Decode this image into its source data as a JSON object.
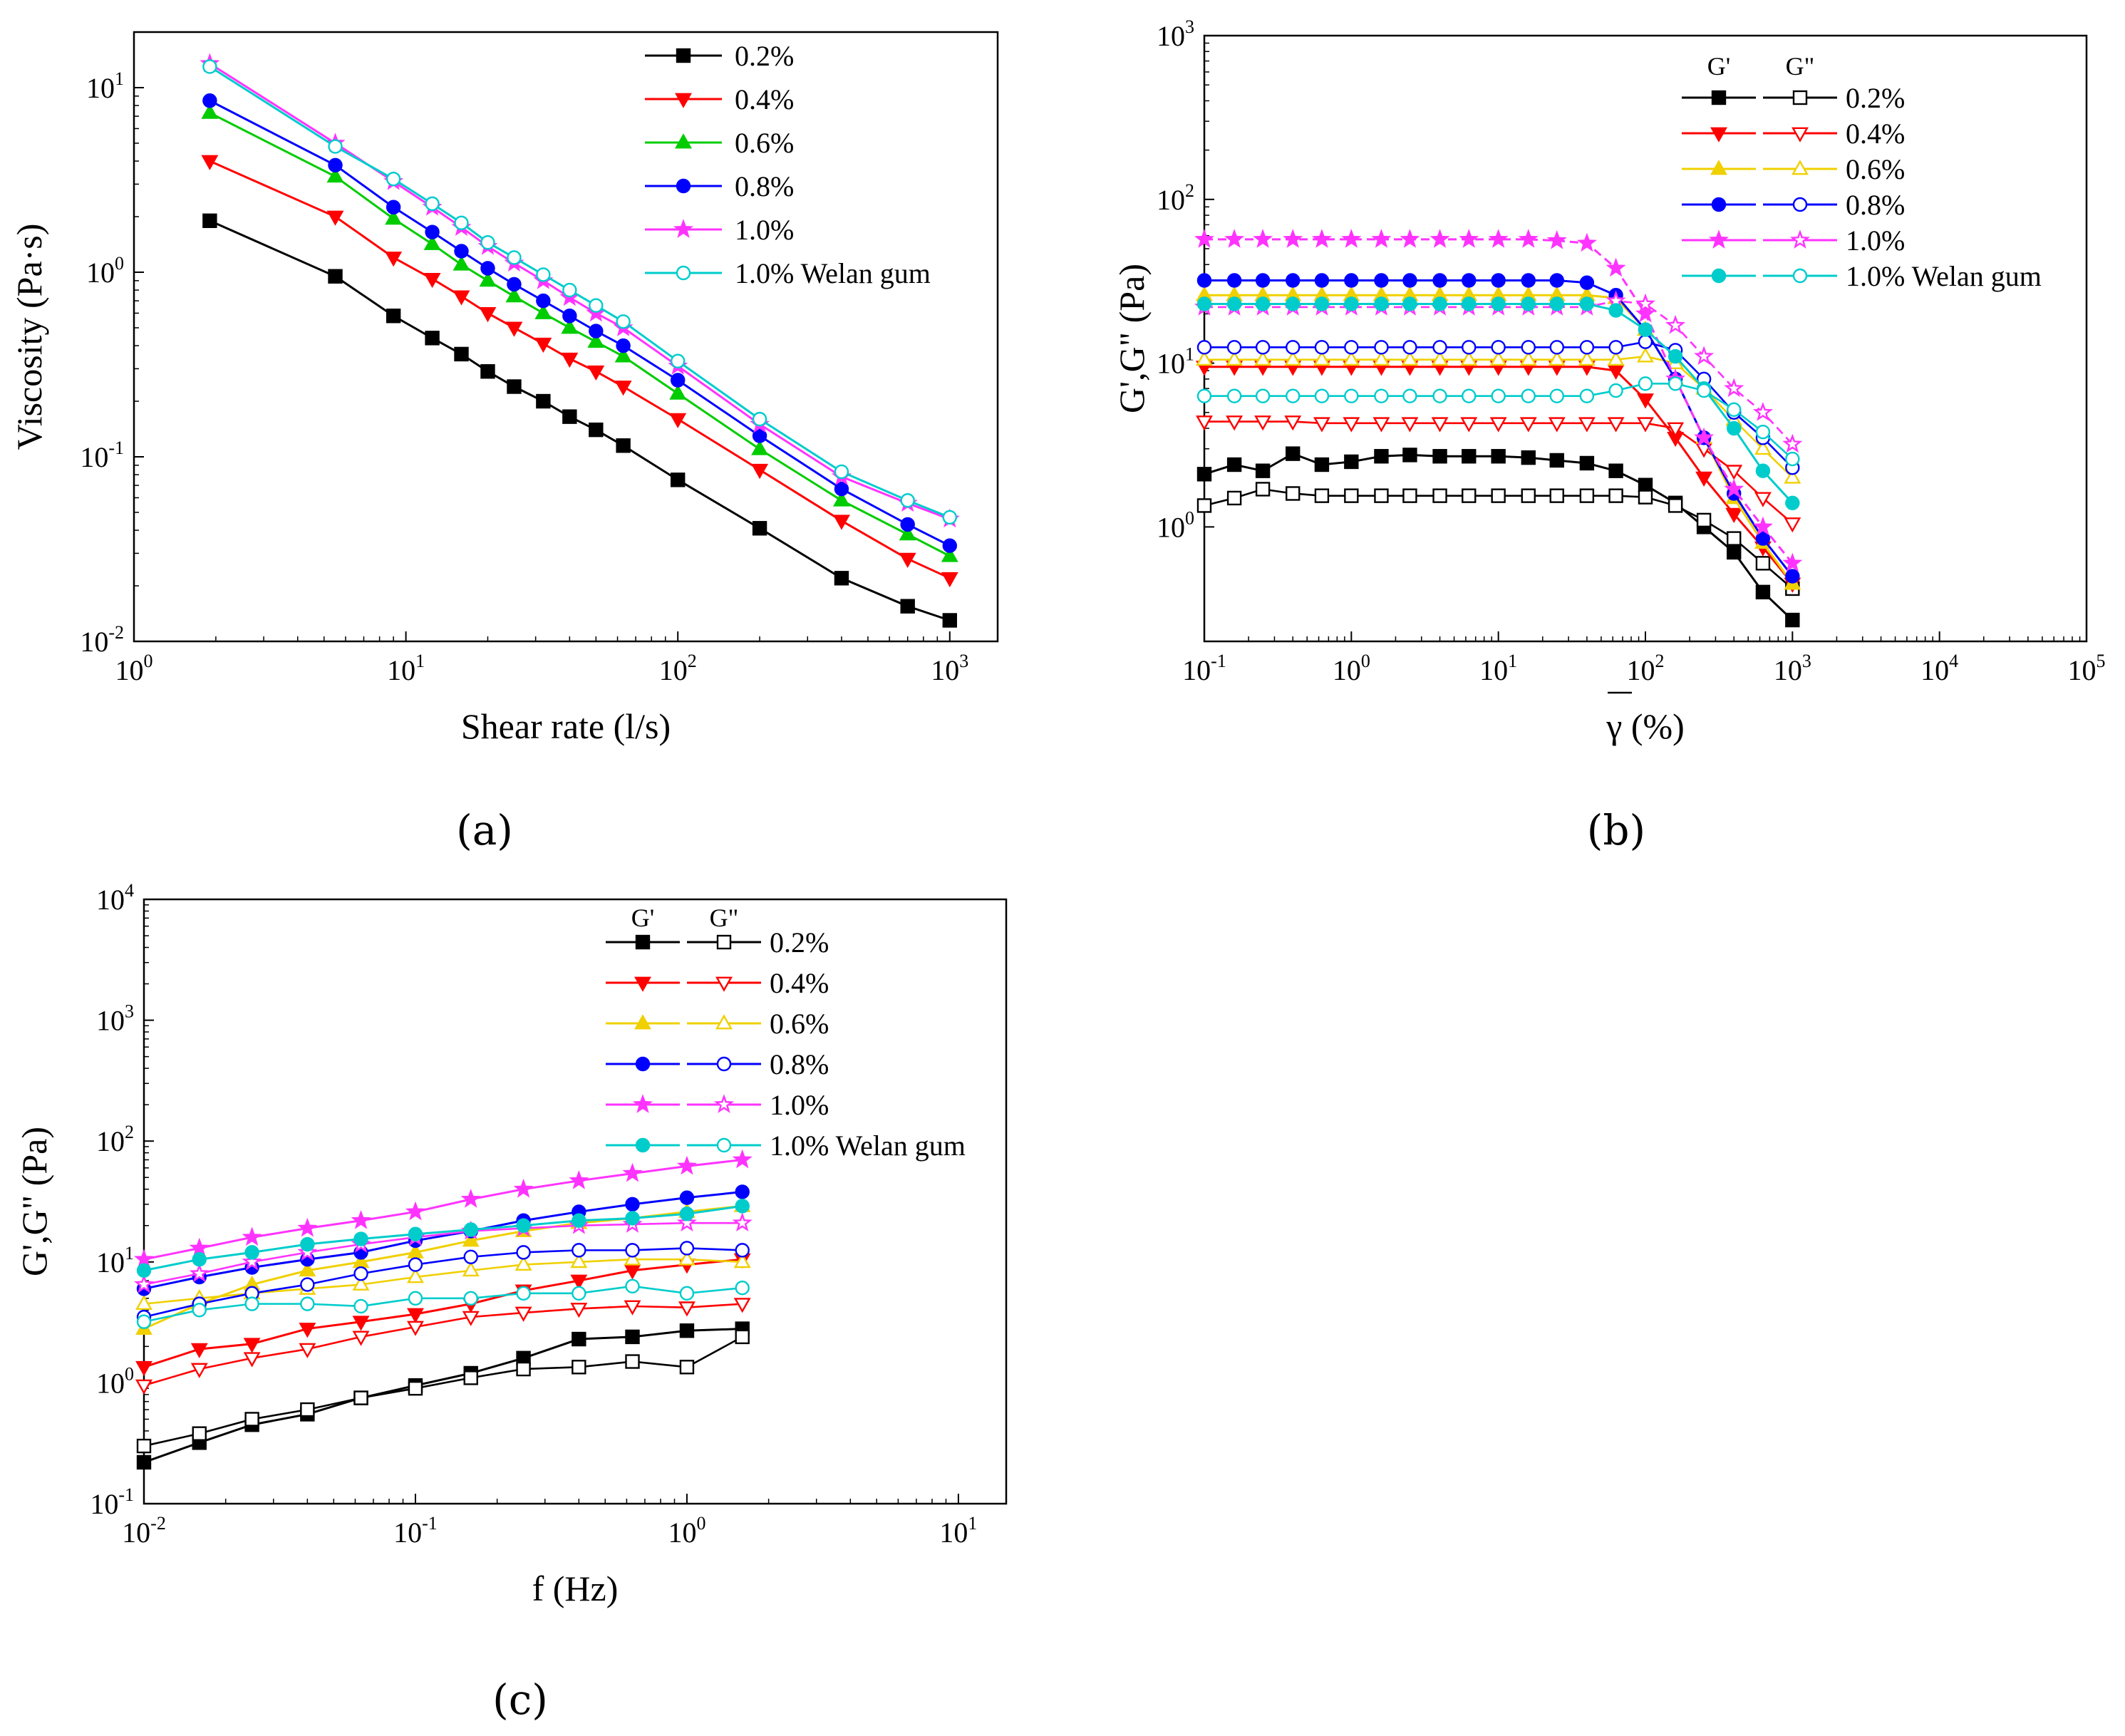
{
  "figure": {
    "panels": [
      {
        "label": "(a)"
      },
      {
        "label": "(b)"
      },
      {
        "label": "(c)"
      }
    ]
  },
  "chart_data": [
    {
      "type": "line",
      "xscale": "log",
      "yscale": "log",
      "xlabel": "Shear rate (l/s)",
      "ylabel": "Viscosity (Pa·s)",
      "xlim": [
        1,
        1500
      ],
      "ylim": [
        0.01,
        20
      ],
      "xticks": [
        {
          "base": "10",
          "exp": "0"
        },
        {
          "base": "10",
          "exp": "1"
        },
        {
          "base": "10",
          "exp": "2"
        },
        {
          "base": "10",
          "exp": "3"
        }
      ],
      "yticks": [
        {
          "base": "10",
          "exp": "-2"
        },
        {
          "base": "10",
          "exp": "-1"
        },
        {
          "base": "10",
          "exp": "0"
        },
        {
          "base": "10",
          "exp": "1"
        }
      ],
      "legend_position": "top-right",
      "series": [
        {
          "name": "0.2%",
          "color": "#000000",
          "marker": "square",
          "x": [
            1.9,
            5.5,
            9,
            12.5,
            16,
            20,
            25,
            32,
            40,
            50,
            63,
            100,
            200,
            400,
            700,
            1000
          ],
          "y": [
            1.9,
            0.95,
            0.58,
            0.44,
            0.36,
            0.29,
            0.24,
            0.2,
            0.165,
            0.14,
            0.115,
            0.075,
            0.041,
            0.022,
            0.0155,
            0.013
          ]
        },
        {
          "name": "0.4%",
          "color": "#ff0000",
          "marker": "triangle-down",
          "x": [
            1.9,
            5.5,
            9,
            12.5,
            16,
            20,
            25,
            32,
            40,
            50,
            63,
            100,
            200,
            400,
            700,
            1000
          ],
          "y": [
            4.0,
            2.0,
            1.2,
            0.92,
            0.74,
            0.6,
            0.5,
            0.41,
            0.34,
            0.29,
            0.24,
            0.16,
            0.085,
            0.045,
            0.028,
            0.022
          ]
        },
        {
          "name": "0.6%",
          "color": "#00cc00",
          "marker": "triangle-up",
          "x": [
            1.9,
            5.5,
            9,
            12.5,
            16,
            20,
            25,
            32,
            40,
            50,
            63,
            100,
            200,
            400,
            700,
            1000
          ],
          "y": [
            7.3,
            3.3,
            1.95,
            1.42,
            1.1,
            0.9,
            0.74,
            0.6,
            0.5,
            0.42,
            0.35,
            0.22,
            0.11,
            0.058,
            0.038,
            0.029
          ]
        },
        {
          "name": "0.8%",
          "color": "#0000ff",
          "marker": "circle",
          "x": [
            1.9,
            5.5,
            9,
            12.5,
            16,
            20,
            25,
            32,
            40,
            50,
            63,
            100,
            200,
            400,
            700,
            1000
          ],
          "y": [
            8.5,
            3.8,
            2.25,
            1.65,
            1.3,
            1.05,
            0.86,
            0.7,
            0.58,
            0.48,
            0.4,
            0.26,
            0.13,
            0.067,
            0.043,
            0.033
          ]
        },
        {
          "name": "1.0%",
          "color": "#ff33ff",
          "marker": "star",
          "x": [
            1.9,
            5.5,
            9,
            12.5,
            16,
            20,
            25,
            32,
            40,
            50,
            63,
            100,
            200,
            400,
            700,
            1000
          ],
          "y": [
            13.5,
            5.0,
            3.1,
            2.25,
            1.75,
            1.38,
            1.12,
            0.9,
            0.73,
            0.6,
            0.5,
            0.31,
            0.15,
            0.078,
            0.056,
            0.046
          ]
        },
        {
          "name": "1.0% Welan gum",
          "color": "#00cccc",
          "marker": "circle-open",
          "x": [
            1.9,
            5.5,
            9,
            12.5,
            16,
            20,
            25,
            32,
            40,
            50,
            63,
            100,
            200,
            400,
            700,
            1000
          ],
          "y": [
            13.0,
            4.8,
            3.2,
            2.35,
            1.85,
            1.45,
            1.2,
            0.97,
            0.8,
            0.66,
            0.54,
            0.33,
            0.16,
            0.083,
            0.058,
            0.047
          ]
        }
      ]
    },
    {
      "type": "line",
      "xscale": "log",
      "yscale": "log",
      "xlabel": "γ (%)",
      "ylabel": "G',G\" (Pa)",
      "xlim": [
        0.1,
        100000
      ],
      "ylim": [
        0.2,
        1000
      ],
      "xticks": [
        {
          "base": "10",
          "exp": "-1"
        },
        {
          "base": "10",
          "exp": "0"
        },
        {
          "base": "10",
          "exp": "1"
        },
        {
          "base": "10",
          "exp": "2"
        },
        {
          "base": "10",
          "exp": "3"
        },
        {
          "base": "10",
          "exp": "4"
        },
        {
          "base": "10",
          "exp": "5"
        }
      ],
      "yticks": [
        {
          "base": "10",
          "exp": "0"
        },
        {
          "base": "10",
          "exp": "1"
        },
        {
          "base": "10",
          "exp": "2"
        },
        {
          "base": "10",
          "exp": "3"
        }
      ],
      "legend_position": "top-right",
      "legend_header_g1": "G'",
      "legend_header_g2": "G\"",
      "x": [
        0.1,
        0.16,
        0.25,
        0.4,
        0.63,
        1,
        1.6,
        2.5,
        4,
        6.3,
        10,
        16,
        25,
        40,
        63,
        100,
        160,
        250,
        400,
        630,
        1000
      ],
      "series": [
        {
          "name": "0.2%",
          "color": "#000000",
          "g1": [
            2.1,
            2.4,
            2.2,
            2.8,
            2.4,
            2.5,
            2.7,
            2.75,
            2.7,
            2.7,
            2.7,
            2.65,
            2.55,
            2.45,
            2.2,
            1.8,
            1.4,
            1.0,
            0.7,
            0.4,
            0.27
          ],
          "g2": [
            1.35,
            1.5,
            1.7,
            1.6,
            1.55,
            1.55,
            1.55,
            1.55,
            1.55,
            1.55,
            1.55,
            1.55,
            1.55,
            1.55,
            1.55,
            1.52,
            1.35,
            1.1,
            0.85,
            0.6,
            0.42
          ]
        },
        {
          "name": "0.4%",
          "color": "#ff0000",
          "g1": [
            9.5,
            9.5,
            9.5,
            9.5,
            9.5,
            9.5,
            9.5,
            9.5,
            9.5,
            9.5,
            9.5,
            9.5,
            9.5,
            9.5,
            9.0,
            6.0,
            3.5,
            2.0,
            1.2,
            0.75,
            0.45
          ],
          "g2": [
            4.4,
            4.4,
            4.4,
            4.4,
            4.3,
            4.3,
            4.3,
            4.3,
            4.3,
            4.3,
            4.3,
            4.3,
            4.3,
            4.3,
            4.3,
            4.3,
            4.0,
            3.0,
            2.2,
            1.5,
            1.05
          ]
        },
        {
          "name": "0.6%",
          "color": "#f0d000",
          "g1": [
            26,
            26,
            26,
            26,
            26,
            26,
            26,
            26,
            26,
            26,
            26,
            26,
            26,
            26,
            25,
            16,
            8,
            3.5,
            1.5,
            0.8,
            0.45
          ],
          "g2": [
            10.5,
            10.5,
            10.5,
            10.5,
            10.5,
            10.5,
            10.5,
            10.5,
            10.5,
            10.5,
            10.5,
            10.5,
            10.5,
            10.5,
            10.5,
            11,
            10,
            7,
            4.5,
            3.0,
            2.0
          ]
        },
        {
          "name": "0.8%",
          "color": "#0000ff",
          "g1": [
            32,
            32,
            32,
            32,
            32,
            32,
            32,
            32,
            32,
            32,
            32,
            32,
            32,
            31,
            26,
            16,
            8,
            3.5,
            1.6,
            0.85,
            0.5
          ],
          "g2": [
            12.5,
            12.5,
            12.5,
            12.5,
            12.5,
            12.5,
            12.5,
            12.5,
            12.5,
            12.5,
            12.5,
            12.5,
            12.5,
            12.5,
            12.5,
            13.5,
            12,
            8,
            5,
            3.5,
            2.3
          ]
        },
        {
          "name": "1.0%",
          "color": "#ff33ff",
          "g1": [
            57,
            57,
            57,
            57,
            57,
            57,
            57,
            57,
            57,
            57,
            57,
            57,
            56,
            54,
            38,
            20,
            8,
            3.5,
            1.7,
            1.0,
            0.6
          ],
          "g2": [
            22,
            22,
            22,
            22,
            22,
            22,
            22,
            22,
            22,
            22,
            22,
            22,
            22,
            22,
            24,
            23,
            17,
            11,
            7,
            5,
            3.2
          ]
        },
        {
          "name": "1.0% Welan gum",
          "color": "#00cccc",
          "g1": [
            23,
            23,
            23,
            23,
            23,
            23,
            23,
            23,
            23,
            23,
            23,
            23,
            23,
            23,
            21,
            16,
            11,
            7,
            4,
            2.2,
            1.4
          ],
          "g2": [
            6.3,
            6.3,
            6.3,
            6.3,
            6.3,
            6.3,
            6.3,
            6.3,
            6.3,
            6.3,
            6.3,
            6.3,
            6.3,
            6.3,
            6.8,
            7.5,
            7.5,
            6.8,
            5.2,
            3.8,
            2.6
          ]
        }
      ]
    },
    {
      "type": "line",
      "xscale": "log",
      "yscale": "log",
      "xlabel": "f (Hz)",
      "ylabel": "G',G\" (Pa)",
      "xlim": [
        0.01,
        15
      ],
      "ylim": [
        0.1,
        10000
      ],
      "xticks": [
        {
          "base": "10",
          "exp": "-2"
        },
        {
          "base": "10",
          "exp": "-1"
        },
        {
          "base": "10",
          "exp": "0"
        },
        {
          "base": "10",
          "exp": "1"
        }
      ],
      "yticks": [
        {
          "base": "10",
          "exp": "-1"
        },
        {
          "base": "10",
          "exp": "0"
        },
        {
          "base": "10",
          "exp": "1"
        },
        {
          "base": "10",
          "exp": "2"
        },
        {
          "base": "10",
          "exp": "3"
        },
        {
          "base": "10",
          "exp": "4"
        }
      ],
      "legend_position": "top-right",
      "legend_header_g1": "G'",
      "legend_header_g2": "G\"",
      "x": [
        0.01,
        0.016,
        0.025,
        0.04,
        0.063,
        0.1,
        0.16,
        0.25,
        0.4,
        0.63,
        1.0,
        1.6
      ],
      "series": [
        {
          "name": "0.2%",
          "color": "#000000",
          "g1": [
            0.22,
            0.32,
            0.45,
            0.55,
            0.75,
            0.95,
            1.2,
            1.6,
            2.3,
            2.4,
            2.7,
            2.8
          ],
          "g2": [
            0.3,
            0.38,
            0.5,
            0.6,
            0.75,
            0.9,
            1.1,
            1.3,
            1.35,
            1.5,
            1.35,
            2.4
          ]
        },
        {
          "name": "0.4%",
          "color": "#ff0000",
          "g1": [
            1.35,
            1.9,
            2.1,
            2.8,
            3.2,
            3.7,
            4.5,
            5.8,
            7.0,
            8.5,
            9.5,
            10.5
          ],
          "g2": [
            0.95,
            1.3,
            1.6,
            1.9,
            2.4,
            2.9,
            3.5,
            3.8,
            4.1,
            4.3,
            4.2,
            4.5
          ]
        },
        {
          "name": "0.6%",
          "color": "#f0d000",
          "g1": [
            2.8,
            4.5,
            6.5,
            8.5,
            10,
            12,
            15,
            18,
            21,
            23,
            26,
            29
          ],
          "g2": [
            4.5,
            5.0,
            5.5,
            6.0,
            6.5,
            7.5,
            8.5,
            9.5,
            10,
            10.5,
            10.5,
            10
          ]
        },
        {
          "name": "0.8%",
          "color": "#0000ff",
          "g1": [
            6.0,
            7.5,
            9,
            10.5,
            12,
            15,
            18,
            22,
            26,
            30,
            34,
            38
          ],
          "g2": [
            3.5,
            4.5,
            5.5,
            6.5,
            8,
            9.5,
            11,
            12,
            12.5,
            12.5,
            13,
            12.5
          ]
        },
        {
          "name": "1.0%",
          "color": "#ff33ff",
          "g1": [
            10.5,
            13,
            16,
            19,
            22,
            26,
            33,
            40,
            47,
            54,
            62,
            70
          ],
          "g2": [
            6.5,
            8,
            10,
            12,
            14,
            16,
            18,
            19,
            20,
            20.5,
            21,
            21
          ]
        },
        {
          "name": "1.0% Welan gum",
          "color": "#00cccc",
          "g1": [
            8.5,
            10.5,
            12,
            14,
            15.5,
            17,
            18.5,
            20,
            22,
            23,
            25,
            29
          ],
          "g2": [
            3.2,
            4.0,
            4.5,
            4.5,
            4.3,
            5.0,
            5.0,
            5.5,
            5.5,
            6.3,
            5.5,
            6.1
          ]
        }
      ]
    }
  ]
}
